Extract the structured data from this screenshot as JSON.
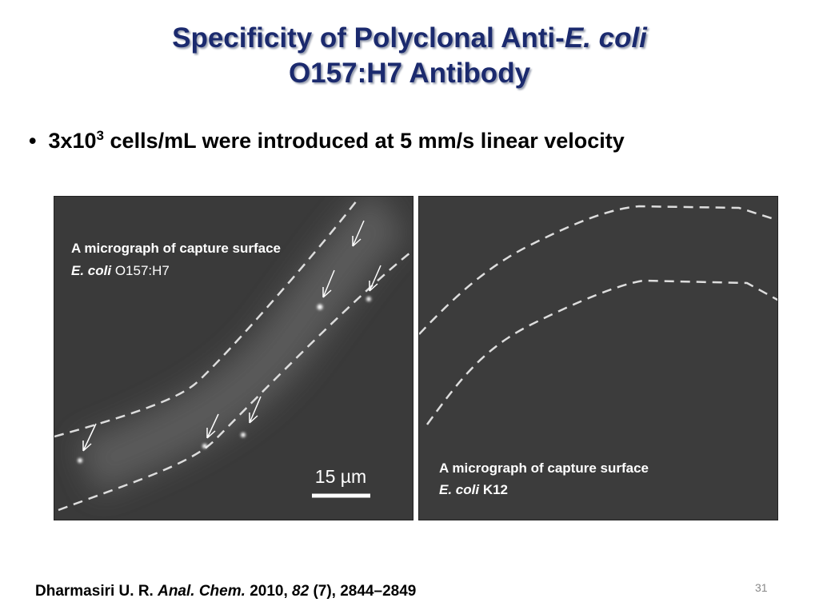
{
  "title": {
    "line1": "Specificity of Polyclonal Anti-",
    "line1_italic": "E. coli",
    "line2": "O157:H7 Antibody"
  },
  "bullet": {
    "base": "3x10",
    "superscript": "3",
    "rest": "cells/mL were introduced at 5 mm/s linear velocity"
  },
  "panels": [
    {
      "caption": "A micrograph of capture surface",
      "organism_italic": "E. coli",
      "strain": "O157:H7",
      "scale_bar": "15 µm"
    },
    {
      "caption": "A micrograph of capture surface",
      "organism_italic": "E. coli",
      "strain": "K12"
    }
  ],
  "citation": {
    "authors": "Dharmasiri U. R.",
    "journal": "Anal. Chem.",
    "year": "2010,",
    "volume": "82",
    "pages": "(7), 2844–2849"
  },
  "slide_number": "31"
}
